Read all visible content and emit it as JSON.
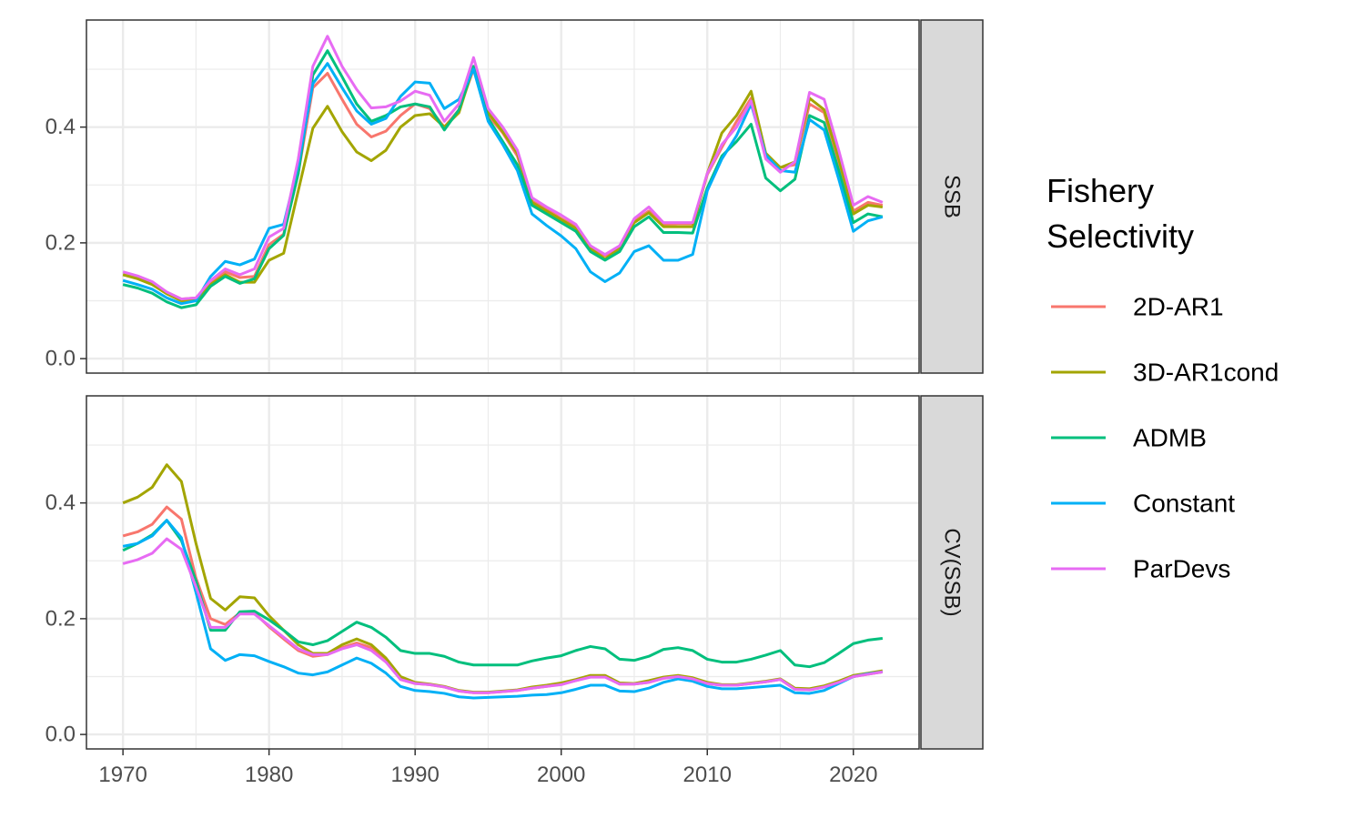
{
  "legend": {
    "title_line1": "Fishery",
    "title_line2": "Selectivity"
  },
  "chart_data": {
    "type": "line",
    "facets": [
      "SSB",
      "CV(SSB)"
    ],
    "x": [
      1970,
      1971,
      1972,
      1973,
      1974,
      1975,
      1976,
      1977,
      1978,
      1979,
      1980,
      1981,
      1982,
      1983,
      1984,
      1985,
      1986,
      1987,
      1988,
      1989,
      1990,
      1991,
      1992,
      1993,
      1994,
      1995,
      1996,
      1997,
      1998,
      1999,
      2000,
      2001,
      2002,
      2003,
      2004,
      2005,
      2006,
      2007,
      2008,
      2009,
      2010,
      2011,
      2012,
      2013,
      2014,
      2015,
      2016,
      2017,
      2018,
      2019,
      2020,
      2021,
      2022
    ],
    "xlim": [
      1967.5,
      2024.5
    ],
    "ylim": [
      -0.025,
      0.585
    ],
    "x_ticks": [
      1970,
      1980,
      1990,
      2000,
      2010,
      2020
    ],
    "y_ticks": [
      0.0,
      0.2,
      0.4
    ],
    "y_tick_labels": [
      "0.0",
      "0.2",
      "0.4"
    ],
    "legend_position": "right",
    "grid": true,
    "series": [
      {
        "name": "2D-AR1",
        "color": "#F8766D",
        "panels": {
          "SSB": [
            0.145,
            0.14,
            0.132,
            0.115,
            0.103,
            0.105,
            0.132,
            0.15,
            0.14,
            0.142,
            0.197,
            0.215,
            0.32,
            0.468,
            0.493,
            0.448,
            0.405,
            0.383,
            0.393,
            0.42,
            0.44,
            0.432,
            0.4,
            0.43,
            0.5,
            0.42,
            0.39,
            0.35,
            0.272,
            0.258,
            0.242,
            0.228,
            0.19,
            0.178,
            0.19,
            0.237,
            0.255,
            0.232,
            0.233,
            0.233,
            0.318,
            0.365,
            0.41,
            0.45,
            0.35,
            0.33,
            0.335,
            0.44,
            0.425,
            0.34,
            0.255,
            0.27,
            0.265
          ],
          "CV(SSB)": [
            0.343,
            0.35,
            0.363,
            0.393,
            0.372,
            0.27,
            0.2,
            0.19,
            0.21,
            0.21,
            0.186,
            0.165,
            0.145,
            0.135,
            0.138,
            0.15,
            0.158,
            0.15,
            0.128,
            0.095,
            0.088,
            0.086,
            0.082,
            0.075,
            0.072,
            0.072,
            0.074,
            0.076,
            0.08,
            0.083,
            0.087,
            0.093,
            0.1,
            0.1,
            0.087,
            0.087,
            0.09,
            0.097,
            0.1,
            0.096,
            0.088,
            0.085,
            0.085,
            0.088,
            0.091,
            0.095,
            0.078,
            0.077,
            0.082,
            0.09,
            0.1,
            0.104,
            0.108
          ]
        }
      },
      {
        "name": "3D-AR1cond",
        "color": "#A3A500",
        "panels": {
          "SSB": [
            0.145,
            0.138,
            0.128,
            0.112,
            0.1,
            0.1,
            0.128,
            0.145,
            0.132,
            0.132,
            0.17,
            0.182,
            0.29,
            0.398,
            0.436,
            0.392,
            0.357,
            0.342,
            0.36,
            0.4,
            0.42,
            0.423,
            0.4,
            0.425,
            0.505,
            0.425,
            0.392,
            0.355,
            0.27,
            0.255,
            0.24,
            0.225,
            0.19,
            0.172,
            0.19,
            0.235,
            0.252,
            0.228,
            0.228,
            0.228,
            0.32,
            0.39,
            0.42,
            0.462,
            0.355,
            0.33,
            0.34,
            0.45,
            0.43,
            0.345,
            0.25,
            0.265,
            0.262
          ],
          "CV(SSB)": [
            0.4,
            0.41,
            0.427,
            0.466,
            0.437,
            0.33,
            0.235,
            0.215,
            0.238,
            0.236,
            0.205,
            0.18,
            0.155,
            0.14,
            0.14,
            0.155,
            0.165,
            0.155,
            0.132,
            0.1,
            0.09,
            0.087,
            0.083,
            0.076,
            0.073,
            0.073,
            0.075,
            0.077,
            0.082,
            0.085,
            0.089,
            0.095,
            0.102,
            0.102,
            0.089,
            0.088,
            0.093,
            0.099,
            0.102,
            0.098,
            0.09,
            0.086,
            0.086,
            0.089,
            0.092,
            0.096,
            0.08,
            0.079,
            0.084,
            0.092,
            0.102,
            0.106,
            0.11
          ]
        }
      },
      {
        "name": "ADMB",
        "color": "#00BF7D",
        "panels": {
          "SSB": [
            0.128,
            0.122,
            0.113,
            0.098,
            0.088,
            0.093,
            0.125,
            0.142,
            0.13,
            0.138,
            0.19,
            0.213,
            0.32,
            0.49,
            0.532,
            0.487,
            0.44,
            0.41,
            0.42,
            0.435,
            0.44,
            0.435,
            0.395,
            0.43,
            0.505,
            0.415,
            0.375,
            0.335,
            0.265,
            0.25,
            0.235,
            0.22,
            0.185,
            0.17,
            0.185,
            0.228,
            0.245,
            0.218,
            0.218,
            0.217,
            0.295,
            0.35,
            0.375,
            0.405,
            0.312,
            0.29,
            0.31,
            0.42,
            0.408,
            0.325,
            0.235,
            0.25,
            0.245
          ],
          "CV(SSB)": [
            0.318,
            0.33,
            0.345,
            0.37,
            0.335,
            0.265,
            0.18,
            0.18,
            0.212,
            0.213,
            0.198,
            0.18,
            0.16,
            0.155,
            0.162,
            0.178,
            0.194,
            0.185,
            0.168,
            0.145,
            0.14,
            0.14,
            0.135,
            0.125,
            0.12,
            0.12,
            0.12,
            0.12,
            0.127,
            0.132,
            0.136,
            0.145,
            0.152,
            0.148,
            0.13,
            0.128,
            0.135,
            0.147,
            0.15,
            0.145,
            0.13,
            0.125,
            0.125,
            0.13,
            0.137,
            0.145,
            0.12,
            0.117,
            0.124,
            0.14,
            0.157,
            0.163,
            0.166
          ]
        }
      },
      {
        "name": "Constant",
        "color": "#00B0F6",
        "panels": {
          "SSB": [
            0.135,
            0.128,
            0.12,
            0.105,
            0.095,
            0.1,
            0.142,
            0.168,
            0.162,
            0.172,
            0.225,
            0.232,
            0.335,
            0.475,
            0.51,
            0.468,
            0.428,
            0.405,
            0.415,
            0.453,
            0.478,
            0.476,
            0.432,
            0.448,
            0.5,
            0.41,
            0.37,
            0.325,
            0.25,
            0.23,
            0.212,
            0.19,
            0.15,
            0.133,
            0.148,
            0.185,
            0.195,
            0.17,
            0.17,
            0.18,
            0.29,
            0.345,
            0.385,
            0.44,
            0.352,
            0.325,
            0.322,
            0.413,
            0.395,
            0.31,
            0.22,
            0.238,
            0.245
          ],
          "CV(SSB)": [
            0.325,
            0.33,
            0.343,
            0.37,
            0.34,
            0.245,
            0.148,
            0.128,
            0.138,
            0.136,
            0.126,
            0.117,
            0.106,
            0.103,
            0.108,
            0.12,
            0.132,
            0.123,
            0.106,
            0.083,
            0.076,
            0.074,
            0.071,
            0.065,
            0.063,
            0.064,
            0.065,
            0.066,
            0.068,
            0.069,
            0.072,
            0.078,
            0.085,
            0.085,
            0.075,
            0.074,
            0.08,
            0.09,
            0.096,
            0.092,
            0.083,
            0.079,
            0.079,
            0.081,
            0.083,
            0.085,
            0.072,
            0.071,
            0.076,
            0.088,
            0.1,
            0.105,
            0.108
          ]
        }
      },
      {
        "name": "ParDevs",
        "color": "#E76BF3",
        "panels": {
          "SSB": [
            0.15,
            0.143,
            0.133,
            0.115,
            0.103,
            0.105,
            0.135,
            0.155,
            0.145,
            0.155,
            0.21,
            0.225,
            0.345,
            0.505,
            0.557,
            0.505,
            0.465,
            0.433,
            0.435,
            0.445,
            0.462,
            0.455,
            0.41,
            0.44,
            0.52,
            0.432,
            0.4,
            0.36,
            0.278,
            0.262,
            0.248,
            0.232,
            0.195,
            0.18,
            0.195,
            0.242,
            0.262,
            0.235,
            0.235,
            0.235,
            0.32,
            0.37,
            0.4,
            0.445,
            0.345,
            0.322,
            0.34,
            0.46,
            0.448,
            0.36,
            0.265,
            0.28,
            0.27
          ],
          "CV(SSB)": [
            0.295,
            0.302,
            0.313,
            0.338,
            0.32,
            0.255,
            0.185,
            0.185,
            0.208,
            0.208,
            0.188,
            0.168,
            0.148,
            0.138,
            0.138,
            0.148,
            0.155,
            0.145,
            0.125,
            0.095,
            0.088,
            0.086,
            0.082,
            0.075,
            0.072,
            0.072,
            0.074,
            0.076,
            0.08,
            0.083,
            0.086,
            0.093,
            0.099,
            0.099,
            0.087,
            0.087,
            0.09,
            0.097,
            0.1,
            0.096,
            0.088,
            0.085,
            0.085,
            0.088,
            0.091,
            0.095,
            0.078,
            0.077,
            0.082,
            0.09,
            0.1,
            0.104,
            0.108
          ]
        }
      }
    ]
  }
}
